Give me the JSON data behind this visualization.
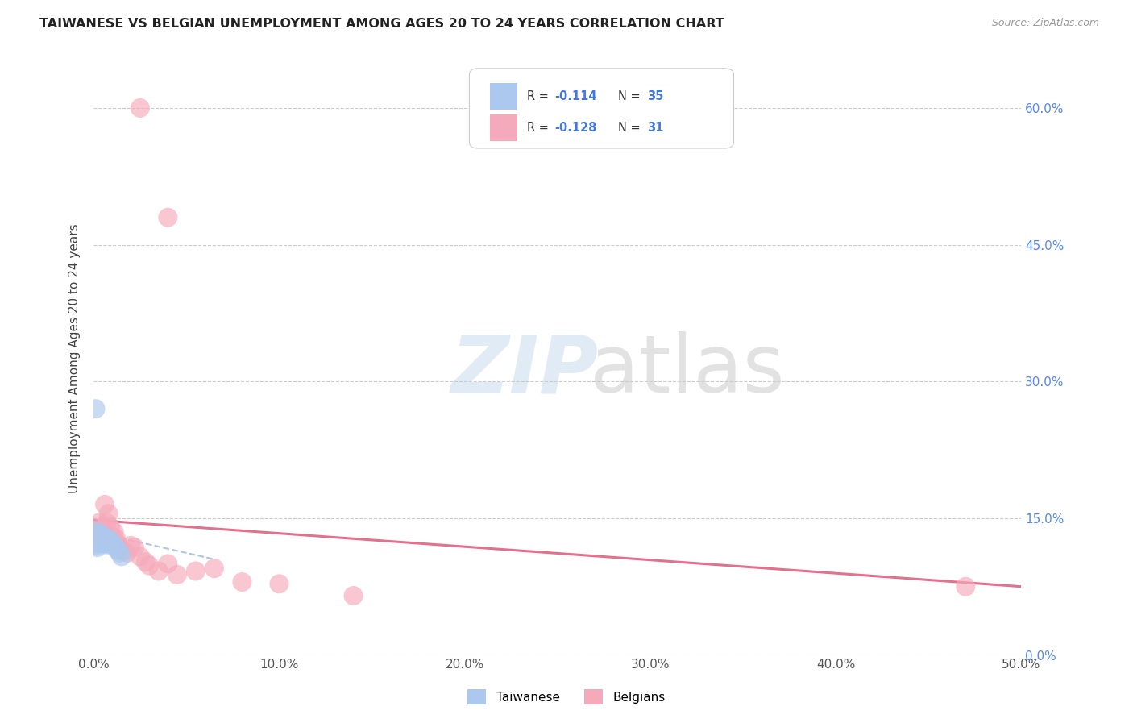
{
  "title": "TAIWANESE VS BELGIAN UNEMPLOYMENT AMONG AGES 20 TO 24 YEARS CORRELATION CHART",
  "source": "Source: ZipAtlas.com",
  "ylabel": "Unemployment Among Ages 20 to 24 years",
  "xlim": [
    0.0,
    0.5
  ],
  "ylim": [
    0.0,
    0.65
  ],
  "yticks_right": [
    0.0,
    0.15,
    0.3,
    0.45,
    0.6
  ],
  "ytick_labels_right": [
    "0.0%",
    "15.0%",
    "30.0%",
    "45.0%",
    "60.0%"
  ],
  "xticks": [
    0.0,
    0.1,
    0.2,
    0.3,
    0.4,
    0.5
  ],
  "xtick_labels": [
    "0.0%",
    "10.0%",
    "20.0%",
    "30.0%",
    "40.0%",
    "50.0%"
  ],
  "taiwan_color": "#adc8ee",
  "belgian_color": "#f5aabb",
  "taiwan_line_color": "#8ab0d8",
  "belgian_line_color": "#e06080",
  "taiwan_x": [
    0.001,
    0.001,
    0.001,
    0.001,
    0.002,
    0.002,
    0.002,
    0.002,
    0.003,
    0.003,
    0.003,
    0.003,
    0.004,
    0.004,
    0.004,
    0.005,
    0.005,
    0.005,
    0.006,
    0.006,
    0.006,
    0.007,
    0.007,
    0.007,
    0.008,
    0.008,
    0.009,
    0.01,
    0.011,
    0.012,
    0.013,
    0.014,
    0.015,
    0.002,
    0.001
  ],
  "taiwan_y": [
    0.13,
    0.128,
    0.125,
    0.122,
    0.135,
    0.132,
    0.129,
    0.12,
    0.133,
    0.13,
    0.127,
    0.123,
    0.131,
    0.128,
    0.125,
    0.13,
    0.127,
    0.124,
    0.129,
    0.126,
    0.122,
    0.128,
    0.125,
    0.121,
    0.127,
    0.123,
    0.125,
    0.122,
    0.12,
    0.117,
    0.115,
    0.112,
    0.108,
    0.118,
    0.27
  ],
  "belgian_x": [
    0.001,
    0.003,
    0.004,
    0.005,
    0.006,
    0.007,
    0.008,
    0.009,
    0.01,
    0.011,
    0.012,
    0.013,
    0.014,
    0.016,
    0.018,
    0.02,
    0.022,
    0.025,
    0.028,
    0.03,
    0.035,
    0.04,
    0.045,
    0.055,
    0.065,
    0.08,
    0.1,
    0.14,
    0.025,
    0.04,
    0.47
  ],
  "belgian_y": [
    0.135,
    0.145,
    0.13,
    0.14,
    0.165,
    0.145,
    0.155,
    0.14,
    0.13,
    0.135,
    0.128,
    0.122,
    0.118,
    0.114,
    0.112,
    0.12,
    0.118,
    0.108,
    0.102,
    0.098,
    0.092,
    0.1,
    0.088,
    0.092,
    0.095,
    0.08,
    0.078,
    0.065,
    0.6,
    0.48,
    0.075
  ],
  "taiwan_line_x": [
    0.0,
    0.065
  ],
  "taiwan_line_y": [
    0.135,
    0.105
  ],
  "belgian_line_x": [
    0.0,
    0.5
  ],
  "belgian_line_y": [
    0.148,
    0.075
  ]
}
